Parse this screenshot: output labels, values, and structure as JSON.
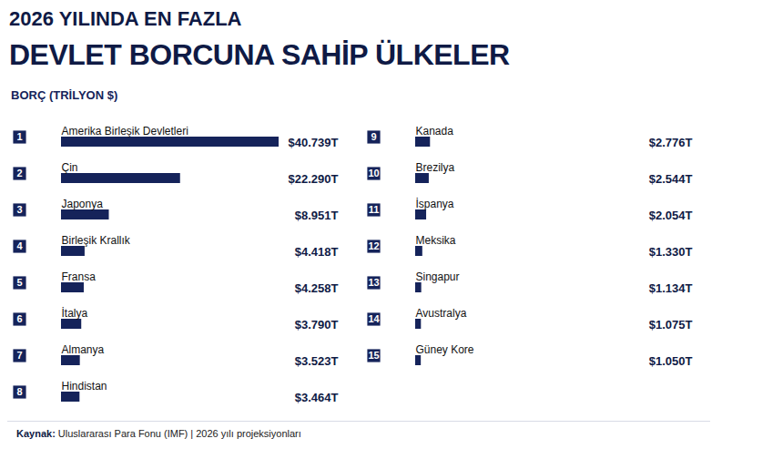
{
  "chart_data": {
    "type": "bar",
    "orientation": "horizontal",
    "title": [
      "2026 YILINDA EN FAZLA",
      "DEVLET BORCUNA SAHİP ÜLKELER"
    ],
    "subtitle": "BORÇ (TRİLYON $)",
    "annotations": [
      "Kaynak: Uluslararası Para Fonu (IMF) | 2026 yılı projeksiyonları"
    ],
    "ranks": [
      1,
      2,
      3,
      4,
      5,
      6,
      7,
      8,
      9,
      10,
      11,
      12,
      13,
      14,
      15
    ],
    "categories": [
      "Amerika Birleşik Devletleri",
      "Çin",
      "Japonya",
      "Birleşik Krallık",
      "Fransa",
      "İtalya",
      "Almanya",
      "Hindistan",
      "Kanada",
      "Brezilya",
      "İspanya",
      "Meksika",
      "Singapur",
      "Avustralya",
      "Güney Kore"
    ],
    "values": [
      40.739,
      22.29,
      8.951,
      4.418,
      4.258,
      3.79,
      3.523,
      3.464,
      2.776,
      2.544,
      2.054,
      1.33,
      1.134,
      1.075,
      1.05
    ],
    "value_labels": [
      "$40.739T",
      "$22.290T",
      "$8.951T",
      "$4.418T",
      "$4.258T",
      "$3.790T",
      "$3.523T",
      "$3.464T",
      "$2.776T",
      "$2.544T",
      "$2.054T",
      "$1.330T",
      "$1.134T",
      "$1.075T",
      "$1.050T"
    ],
    "color": "#15235a",
    "xlim": [
      0,
      40.739
    ],
    "data_labels": true,
    "tick_labels": false,
    "grid": false
  }
}
